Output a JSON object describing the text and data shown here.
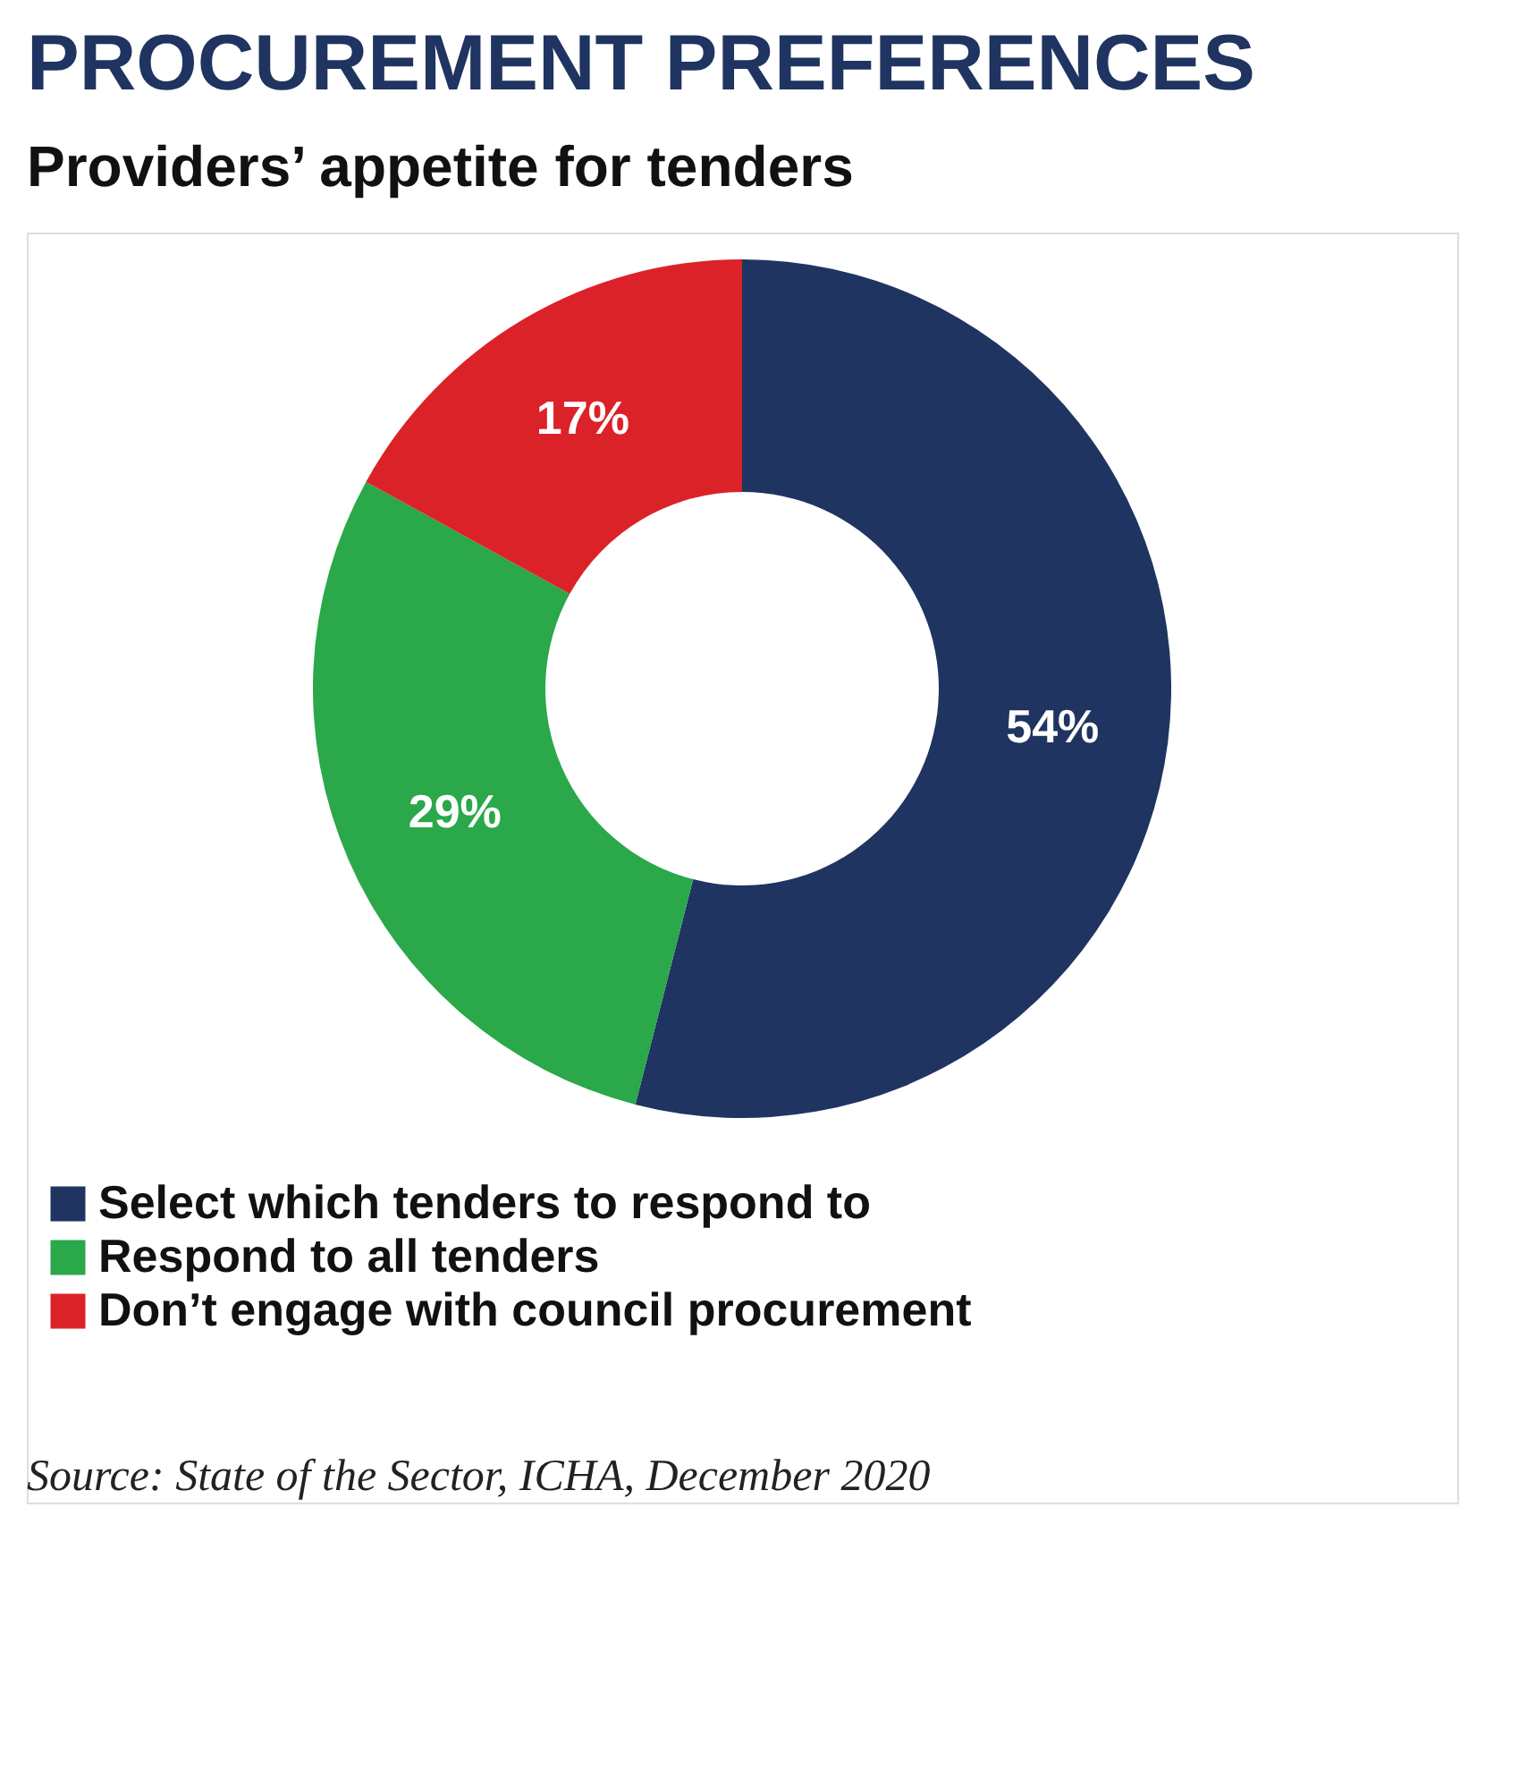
{
  "chart_data": {
    "type": "donut",
    "title": "PROCUREMENT PREFERENCES",
    "subtitle": "Providers’ appetite for tenders",
    "categories": [
      "Select which tenders to respond to",
      "Respond to all tenders",
      "Don’t engage with council procurement"
    ],
    "values": [
      54,
      29,
      17
    ],
    "colors": [
      "#1f3461",
      "#2aa84a",
      "#dc2229"
    ],
    "value_labels": [
      "54%",
      "29%",
      "17%"
    ],
    "legend": "bottom left",
    "annotations": [
      "Source: State of the Sector, ICHA, December 2020"
    ]
  }
}
